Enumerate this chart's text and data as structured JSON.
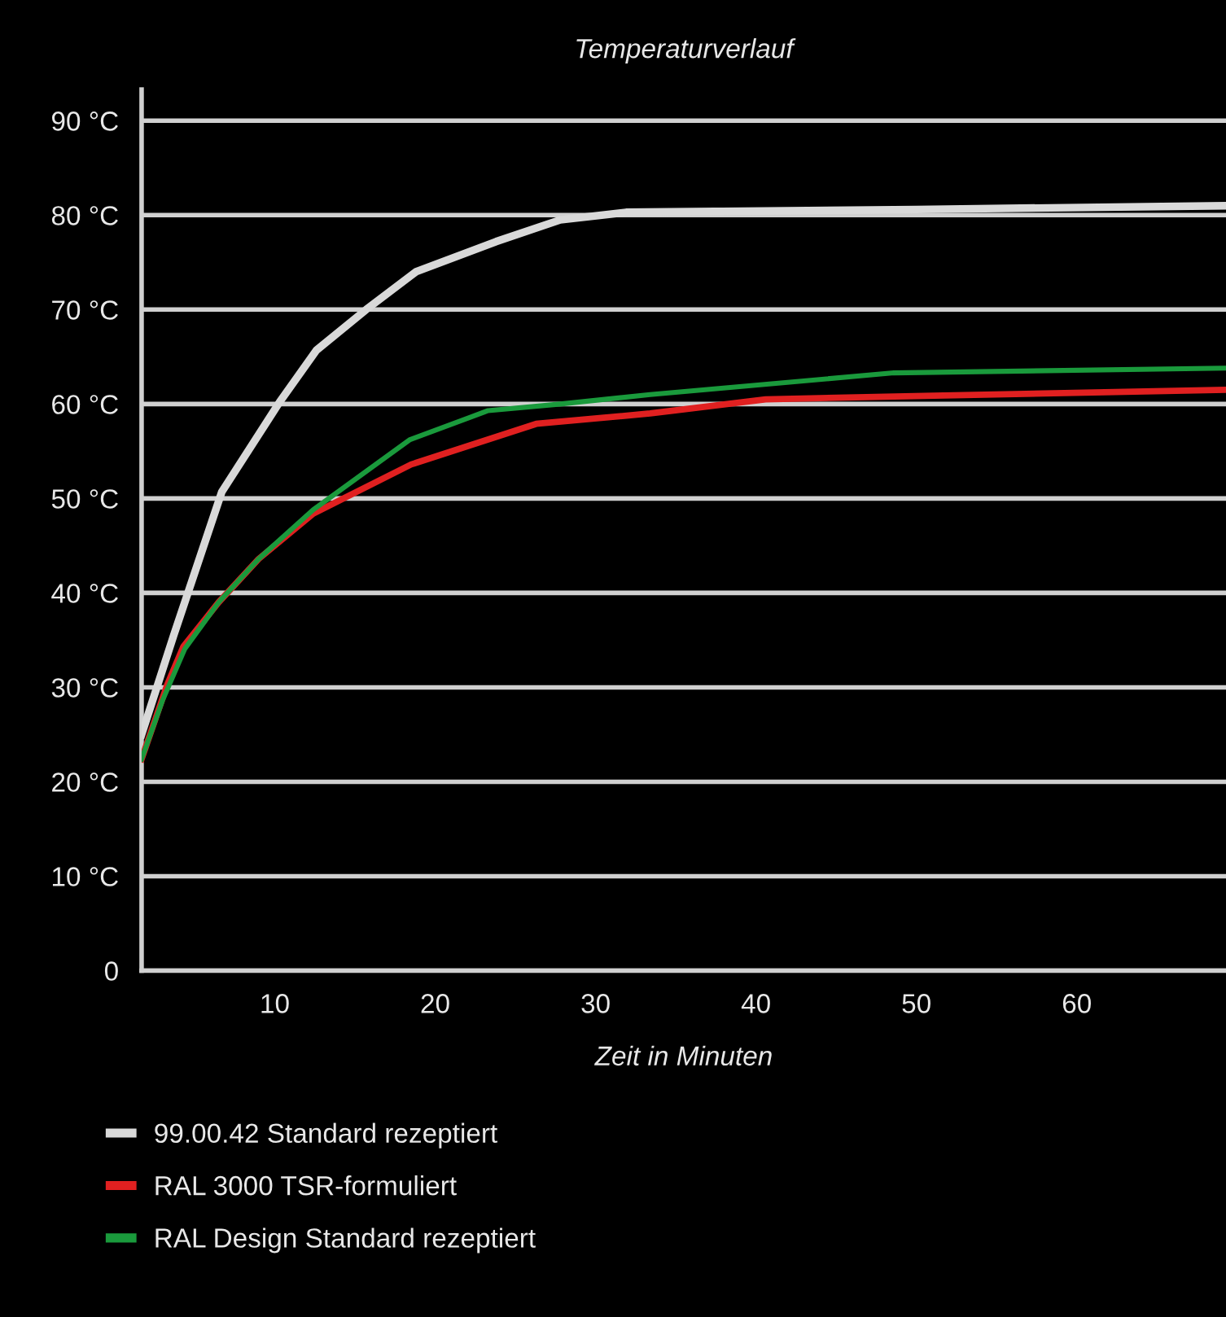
{
  "chart_data": {
    "type": "line",
    "title": "Temperaturverlauf",
    "xlabel": "Zeit in Minuten",
    "xlim": [
      1.7,
      69.3
    ],
    "xticks": [
      10,
      20,
      30,
      40,
      50,
      60
    ],
    "ylim": [
      0,
      93.3
    ],
    "yticks": [
      0,
      {
        "value": 10,
        "label": "10 °C"
      },
      {
        "value": 20,
        "label": "20 °C"
      },
      {
        "value": 30,
        "label": "30 °C"
      },
      {
        "value": 40,
        "label": "40 °C"
      },
      {
        "value": 50,
        "label": "50 °C"
      },
      {
        "value": 60,
        "label": "60 °C"
      },
      {
        "value": 70,
        "label": "70 °C"
      },
      {
        "value": 80,
        "label": "80 °C"
      },
      {
        "value": 90,
        "label": "90 °C"
      }
    ],
    "grid": "y",
    "legend": "bottom",
    "marker": "none",
    "line_style": "solid",
    "series": [
      {
        "name": "99.00.42 Standard rezeptiert",
        "color": "#d9d9d9",
        "x": [
          1.7,
          3.7,
          6.7,
          10.3,
          12.6,
          15.7,
          18.8,
          23.8,
          27.8,
          31.9,
          50,
          69.3
        ],
        "values": [
          25,
          35.5,
          50.7,
          60.2,
          65.7,
          70,
          74,
          77.2,
          79.5,
          80.3,
          80.6,
          81
        ]
      },
      {
        "name": "RAL 3000 TSR-formuliert",
        "color": "#e02020",
        "x": [
          1.7,
          3.3,
          4.3,
          6.5,
          9.0,
          12.4,
          18.5,
          26.3,
          33.4,
          40.6,
          51.7,
          69.3
        ],
        "values": [
          22.4,
          30.3,
          34.3,
          39,
          43.6,
          48.4,
          53.6,
          57.9,
          59,
          60.5,
          60.9,
          61.5
        ]
      },
      {
        "name": "RAL Design Standard rezeptiert",
        "color": "#1a9a3c",
        "x": [
          1.7,
          3.0,
          4.4,
          6.5,
          9.0,
          12.4,
          18.4,
          23.3,
          27.8,
          33.4,
          48.6,
          69.3
        ],
        "values": [
          22.4,
          28.6,
          34.1,
          39,
          43.6,
          48.8,
          56.2,
          59.3,
          60,
          61,
          63.3,
          63.8
        ]
      }
    ]
  }
}
